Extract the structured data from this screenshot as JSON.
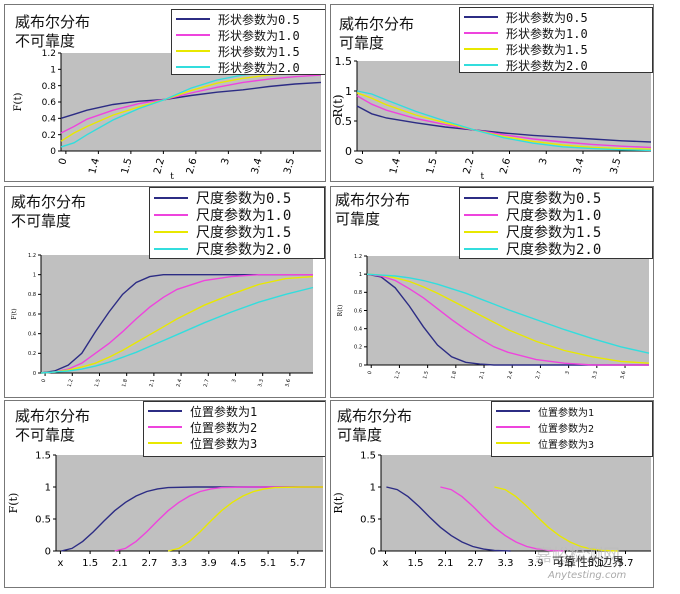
{
  "chart_data": [
    {
      "type": "line",
      "title": [
        "威布尔分布",
        "不可靠度"
      ],
      "xlabel": "t",
      "ylabel": "F(t)",
      "ylim": [
        0,
        1.2
      ],
      "yticks": [
        "0",
        "0.2",
        "0.4",
        "0.6",
        "0.8",
        "1",
        "1.2"
      ],
      "xticks": [
        "0",
        "1.4",
        "1.5",
        "2.2",
        "2.6",
        "3",
        "3.4",
        "3.5"
      ],
      "xrange": [
        0,
        5
      ],
      "grid": false,
      "legend": "top-right",
      "series": [
        {
          "name": "形状参数为0.5",
          "color": "#2c2c84",
          "x": [
            0,
            0.25,
            0.5,
            1,
            1.5,
            2,
            2.5,
            3,
            3.5,
            4,
            4.5,
            5
          ],
          "y": [
            0.4,
            0.45,
            0.5,
            0.57,
            0.61,
            0.63,
            0.68,
            0.72,
            0.75,
            0.79,
            0.82,
            0.84
          ]
        },
        {
          "name": "形状参数为1.0",
          "color": "#ee44dd",
          "x": [
            0,
            0.25,
            0.5,
            1,
            1.5,
            2,
            2.5,
            3,
            3.5,
            4,
            4.5,
            5
          ],
          "y": [
            0.22,
            0.3,
            0.39,
            0.5,
            0.58,
            0.63,
            0.71,
            0.78,
            0.84,
            0.88,
            0.91,
            0.93
          ]
        },
        {
          "name": "形状参数为1.5",
          "color": "#e8e800",
          "x": [
            0,
            0.25,
            0.5,
            1,
            1.5,
            2,
            2.5,
            3,
            3.5,
            4,
            4.5,
            5
          ],
          "y": [
            0.12,
            0.22,
            0.3,
            0.44,
            0.54,
            0.63,
            0.74,
            0.83,
            0.89,
            0.93,
            0.95,
            0.96
          ]
        },
        {
          "name": "形状参数为2.0",
          "color": "#33dddd",
          "x": [
            0,
            0.25,
            0.5,
            1,
            1.5,
            2,
            2.5,
            3,
            3.5,
            4,
            4.5,
            5
          ],
          "y": [
            0.05,
            0.1,
            0.2,
            0.38,
            0.52,
            0.63,
            0.77,
            0.87,
            0.93,
            0.96,
            0.97,
            0.98
          ]
        }
      ]
    },
    {
      "type": "line",
      "title": [
        "威布尔分布",
        "可靠度"
      ],
      "xlabel": "t",
      "ylabel": "R(t)",
      "ylim": [
        0,
        1.5
      ],
      "yticks": [
        "0",
        "0.5",
        "1",
        "1.5"
      ],
      "xticks": [
        "0",
        "1.4",
        "1.5",
        "2.2",
        "2.6",
        "3",
        "3.4",
        "3.5"
      ],
      "xrange": [
        0,
        5
      ],
      "grid": false,
      "legend": "top-right",
      "series": [
        {
          "name": "形状参数为0.5",
          "color": "#2c2c84",
          "x": [
            0,
            0.25,
            0.5,
            1,
            1.5,
            2,
            2.5,
            3,
            3.5,
            4,
            4.5,
            5
          ],
          "y": [
            0.75,
            0.62,
            0.55,
            0.47,
            0.4,
            0.35,
            0.3,
            0.26,
            0.23,
            0.2,
            0.17,
            0.15
          ]
        },
        {
          "name": "形状参数为1.0",
          "color": "#ee44dd",
          "x": [
            0,
            0.25,
            0.5,
            1,
            1.5,
            2,
            2.5,
            3,
            3.5,
            4,
            4.5,
            5
          ],
          "y": [
            0.92,
            0.78,
            0.68,
            0.54,
            0.44,
            0.35,
            0.27,
            0.2,
            0.15,
            0.11,
            0.08,
            0.06
          ]
        },
        {
          "name": "形状参数为1.5",
          "color": "#e8e800",
          "x": [
            0,
            0.25,
            0.5,
            1,
            1.5,
            2,
            2.5,
            3,
            3.5,
            4,
            4.5,
            5
          ],
          "y": [
            0.97,
            0.88,
            0.77,
            0.6,
            0.47,
            0.35,
            0.24,
            0.16,
            0.1,
            0.06,
            0.04,
            0.03
          ]
        },
        {
          "name": "形状参数为2.0",
          "color": "#33dddd",
          "x": [
            0,
            0.25,
            0.5,
            1,
            1.5,
            2,
            2.5,
            3,
            3.5,
            4,
            4.5,
            5
          ],
          "y": [
            1.0,
            0.95,
            0.85,
            0.66,
            0.5,
            0.35,
            0.22,
            0.13,
            0.07,
            0.04,
            0.02,
            0.01
          ]
        }
      ]
    },
    {
      "type": "line",
      "title": [
        "威布尔分布",
        "不可靠度"
      ],
      "xlabel": "",
      "ylabel": "F(t)",
      "ylim": [
        0,
        1.2
      ],
      "yticks": [
        "0",
        "0.2",
        "0.4",
        "0.6",
        "0.8",
        "1",
        "1.2"
      ],
      "xticks": [
        "0",
        "1.2",
        "1.5",
        "1.8",
        "2.1",
        "2.4",
        "2.7",
        "3",
        "3.3",
        "3.6"
      ],
      "xrange": [
        0,
        5
      ],
      "grid": false,
      "legend": "top-right",
      "series": [
        {
          "name": "尺度参数为0.5",
          "color": "#2c2c84",
          "x": [
            0,
            0.25,
            0.5,
            0.75,
            1,
            1.25,
            1.5,
            1.75,
            2,
            2.25,
            2.5,
            3,
            3.5,
            4,
            4.5,
            5
          ],
          "y": [
            0,
            0.02,
            0.08,
            0.2,
            0.42,
            0.62,
            0.8,
            0.92,
            0.98,
            1,
            1,
            1,
            1,
            1,
            1,
            1
          ]
        },
        {
          "name": "尺度参数为1.0",
          "color": "#ee44dd",
          "x": [
            0,
            0.25,
            0.5,
            0.75,
            1,
            1.25,
            1.5,
            1.75,
            2,
            2.25,
            2.5,
            3,
            3.5,
            4,
            4.5,
            5
          ],
          "y": [
            0,
            0.01,
            0.04,
            0.1,
            0.2,
            0.3,
            0.42,
            0.55,
            0.67,
            0.77,
            0.85,
            0.94,
            0.98,
            1,
            1,
            1
          ]
        },
        {
          "name": "尺度参数为1.5",
          "color": "#e8e800",
          "x": [
            0,
            0.25,
            0.5,
            0.75,
            1,
            1.25,
            1.5,
            1.75,
            2,
            2.25,
            2.5,
            3,
            3.5,
            4,
            4.5,
            5
          ],
          "y": [
            0,
            0.01,
            0.03,
            0.06,
            0.1,
            0.16,
            0.23,
            0.31,
            0.39,
            0.47,
            0.55,
            0.69,
            0.8,
            0.9,
            0.96,
            0.98
          ]
        },
        {
          "name": "尺度参数为2.0",
          "color": "#33dddd",
          "x": [
            0,
            0.25,
            0.5,
            0.75,
            1,
            1.25,
            1.5,
            1.75,
            2,
            2.25,
            2.5,
            3,
            3.5,
            4,
            4.5,
            5
          ],
          "y": [
            0,
            0.01,
            0.02,
            0.04,
            0.07,
            0.11,
            0.16,
            0.21,
            0.27,
            0.33,
            0.39,
            0.51,
            0.62,
            0.72,
            0.8,
            0.87
          ]
        }
      ]
    },
    {
      "type": "line",
      "title": [
        "威布尔分布",
        "可靠度"
      ],
      "xlabel": "",
      "ylabel": "R(t)",
      "ylim": [
        0,
        1.2
      ],
      "yticks": [
        "0",
        "0.2",
        "0.4",
        "0.6",
        "0.8",
        "1",
        "1.2"
      ],
      "xticks": [
        "0",
        "1.2",
        "1.5",
        "1.8",
        "2.1",
        "2.4",
        "2.7",
        "3",
        "3.3",
        "3.6"
      ],
      "xrange": [
        0,
        5
      ],
      "grid": false,
      "legend": "top-right",
      "series": [
        {
          "name": "尺度参数为0.5",
          "color": "#2c2c84",
          "x": [
            0,
            0.25,
            0.5,
            0.75,
            1,
            1.25,
            1.5,
            1.75,
            2,
            2.25,
            2.5,
            3,
            3.5,
            4,
            4.5,
            5
          ],
          "y": [
            1,
            0.97,
            0.85,
            0.65,
            0.42,
            0.22,
            0.09,
            0.03,
            0.01,
            0,
            0,
            0,
            0,
            0,
            0,
            0
          ]
        },
        {
          "name": "尺度参数为1.0",
          "color": "#ee44dd",
          "x": [
            0,
            0.25,
            0.5,
            0.75,
            1,
            1.25,
            1.5,
            1.75,
            2,
            2.25,
            2.5,
            3,
            3.5,
            4,
            4.5,
            5
          ],
          "y": [
            1,
            0.98,
            0.93,
            0.84,
            0.74,
            0.62,
            0.5,
            0.39,
            0.29,
            0.2,
            0.14,
            0.06,
            0.02,
            0,
            0,
            0
          ]
        },
        {
          "name": "尺度参数为1.5",
          "color": "#e8e800",
          "x": [
            0,
            0.25,
            0.5,
            0.75,
            1,
            1.25,
            1.5,
            1.75,
            2,
            2.25,
            2.5,
            3,
            3.5,
            4,
            4.5,
            5
          ],
          "y": [
            1,
            0.99,
            0.96,
            0.92,
            0.86,
            0.79,
            0.71,
            0.63,
            0.55,
            0.47,
            0.39,
            0.26,
            0.16,
            0.09,
            0.04,
            0.02
          ]
        },
        {
          "name": "尺度参数为2.0",
          "color": "#33dddd",
          "x": [
            0,
            0.25,
            0.5,
            0.75,
            1,
            1.25,
            1.5,
            1.75,
            2,
            2.25,
            2.5,
            3,
            3.5,
            4,
            4.5,
            5
          ],
          "y": [
            1,
            0.99,
            0.98,
            0.96,
            0.93,
            0.89,
            0.84,
            0.79,
            0.73,
            0.67,
            0.61,
            0.5,
            0.39,
            0.29,
            0.2,
            0.13
          ]
        }
      ]
    },
    {
      "type": "line",
      "title": [
        "威布尔分布",
        "不可靠度"
      ],
      "xlabel": "",
      "ylabel": "F(t)",
      "ylim": [
        0,
        1.5
      ],
      "yticks": [
        "0",
        "0.5",
        "1",
        "1.5"
      ],
      "xticks": [
        "x",
        "1.5",
        "2.1",
        "2.7",
        "3.3",
        "3.9",
        "4.5",
        "5.1",
        "5.7"
      ],
      "xrange": [
        0.9,
        5.9
      ],
      "grid": false,
      "legend": "top-right",
      "series": [
        {
          "name": "位置参数为1",
          "color": "#2c2c84",
          "x": [
            1.0,
            1.2,
            1.4,
            1.6,
            1.8,
            2.0,
            2.2,
            2.4,
            2.6,
            2.8,
            3.0,
            3.5,
            4.0,
            5.0,
            5.9
          ],
          "y": [
            0,
            0.04,
            0.15,
            0.3,
            0.47,
            0.63,
            0.76,
            0.86,
            0.93,
            0.97,
            0.99,
            1,
            1,
            1,
            1
          ]
        },
        {
          "name": "位置参数为2",
          "color": "#ee44dd",
          "x": [
            2.0,
            2.2,
            2.4,
            2.6,
            2.8,
            3.0,
            3.2,
            3.4,
            3.6,
            3.8,
            4.0,
            4.5,
            5.0,
            5.9
          ],
          "y": [
            0,
            0.04,
            0.15,
            0.3,
            0.47,
            0.63,
            0.76,
            0.86,
            0.93,
            0.97,
            0.99,
            1,
            1,
            1
          ]
        },
        {
          "name": "位置参数为3",
          "color": "#e8e800",
          "x": [
            3.0,
            3.2,
            3.4,
            3.6,
            3.8,
            4.0,
            4.2,
            4.4,
            4.6,
            4.8,
            5.0,
            5.5,
            5.9
          ],
          "y": [
            0,
            0.04,
            0.15,
            0.3,
            0.47,
            0.63,
            0.76,
            0.86,
            0.93,
            0.97,
            0.99,
            1,
            1
          ]
        }
      ]
    },
    {
      "type": "line",
      "title": [
        "威布尔分布",
        "可靠度"
      ],
      "xlabel": "",
      "ylabel": "R(t)",
      "ylim": [
        0,
        1.5
      ],
      "yticks": [
        "0",
        "0.5",
        "1",
        "1.5"
      ],
      "xticks": [
        "x",
        "1.5",
        "2.1",
        "2.7",
        "3.3",
        "3.9",
        "4.5",
        "5.1",
        "5.7"
      ],
      "xrange": [
        0.9,
        5.9
      ],
      "grid": false,
      "legend": "top-right",
      "series": [
        {
          "name": "位置参数为1",
          "color": "#2c2c84",
          "x": [
            1.0,
            1.2,
            1.4,
            1.6,
            1.8,
            2.0,
            2.2,
            2.4,
            2.6,
            2.8,
            3.0,
            3.3
          ],
          "y": [
            1,
            0.96,
            0.85,
            0.7,
            0.53,
            0.37,
            0.24,
            0.14,
            0.07,
            0.03,
            0.01,
            0
          ]
        },
        {
          "name": "位置参数为2",
          "color": "#ee44dd",
          "x": [
            2.0,
            2.2,
            2.4,
            2.6,
            2.8,
            3.0,
            3.2,
            3.4,
            3.6,
            3.8,
            4.0,
            4.3
          ],
          "y": [
            1,
            0.96,
            0.85,
            0.7,
            0.53,
            0.37,
            0.24,
            0.14,
            0.07,
            0.03,
            0.01,
            0
          ]
        },
        {
          "name": "位置参数为3",
          "color": "#e8e800",
          "x": [
            3.0,
            3.2,
            3.4,
            3.6,
            3.8,
            4.0,
            4.2,
            4.4,
            4.6,
            4.8,
            5.0,
            5.3
          ],
          "y": [
            1,
            0.96,
            0.85,
            0.7,
            0.53,
            0.37,
            0.24,
            0.14,
            0.07,
            0.03,
            0.01,
            0
          ]
        }
      ]
    }
  ],
  "watermark": {
    "line1": "嘉峪检测网",
    "line2": "可靠性的边界",
    "line3": "Anytesting.com"
  },
  "colors": {
    "plot_bg": "#c0c0c0",
    "axis": "#000000"
  }
}
